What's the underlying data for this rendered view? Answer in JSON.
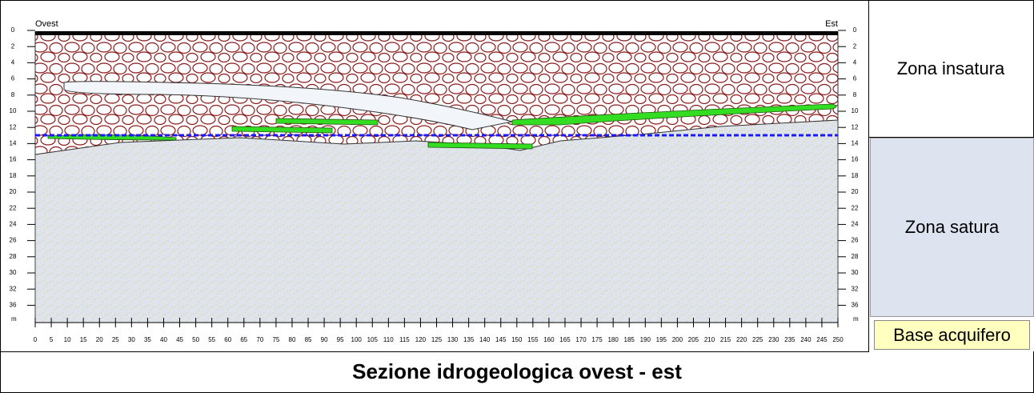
{
  "section": {
    "west_label": "Ovest",
    "east_label": "Est",
    "depth_ticks": [
      "0",
      "2",
      "4",
      "6",
      "8",
      "10",
      "12",
      "14",
      "16",
      "18",
      "20",
      "22",
      "24",
      "26",
      "28",
      "30",
      "32",
      "36"
    ],
    "depth_unit": "m",
    "distance_ticks": [
      "0",
      "5",
      "10",
      "15",
      "20",
      "25",
      "30",
      "35",
      "40",
      "45",
      "50",
      "55",
      "60",
      "65",
      "70",
      "75",
      "80",
      "85",
      "90",
      "95",
      "100",
      "105",
      "110",
      "115",
      "120",
      "125",
      "130",
      "135",
      "140",
      "145",
      "150",
      "155",
      "160",
      "165",
      "170",
      "175",
      "180",
      "185",
      "190",
      "195",
      "200",
      "205",
      "210",
      "215",
      "220",
      "225",
      "230",
      "235",
      "240",
      "245",
      "250"
    ]
  },
  "legend": {
    "unsaturated": "Zona insatura",
    "saturated": "Zona satura",
    "aquifer_base": "Base acquifero"
  },
  "caption": "Sezione idrogeologica ovest - est"
}
